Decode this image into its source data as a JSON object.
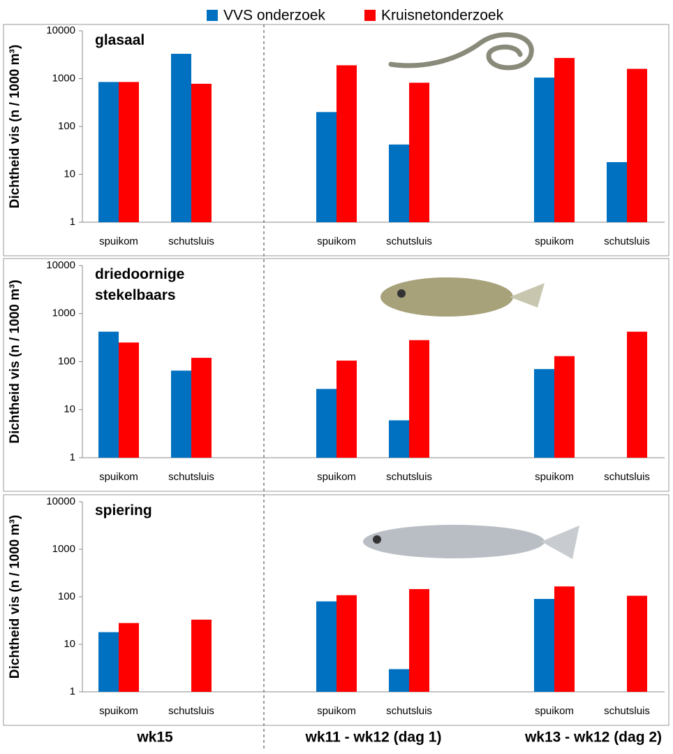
{
  "chart_data": [
    {
      "type": "bar",
      "title": "glasaal",
      "y_label": "Dichtheid vis (n / 1000 m³)",
      "log_scale": true,
      "categories": [
        "spuikom",
        "schutsluis",
        null,
        "spuikom",
        "schutsluis",
        null,
        "spuikom",
        "schutsluis"
      ],
      "series": [
        {
          "name": "VVS onderzoek",
          "color": "#0070c0",
          "values": [
            850,
            3300,
            null,
            200,
            42,
            null,
            1050,
            18
          ]
        },
        {
          "name": "Kruisnetonderzoek",
          "color": "#ff0000",
          "values": [
            850,
            780,
            null,
            1900,
            820,
            null,
            2700,
            1600
          ]
        }
      ],
      "ylim": [
        1,
        10000
      ],
      "yticks": [
        1,
        10,
        100,
        1000,
        10000
      ]
    },
    {
      "type": "bar",
      "title": "driedoornige stekelbaars",
      "y_label": "Dichtheid vis (n / 1000 m³)",
      "log_scale": true,
      "categories": [
        "spuikom",
        "schutsluis",
        null,
        "spuikom",
        "schutsluis",
        null,
        "spuikom",
        "schutsluis"
      ],
      "series": [
        {
          "name": "VVS onderzoek",
          "color": "#0070c0",
          "values": [
            420,
            65,
            null,
            27,
            6,
            null,
            70,
            null
          ]
        },
        {
          "name": "Kruisnetonderzoek",
          "color": "#ff0000",
          "values": [
            250,
            120,
            null,
            105,
            280,
            null,
            130,
            420
          ]
        }
      ],
      "ylim": [
        1,
        10000
      ],
      "yticks": [
        1,
        10,
        100,
        1000,
        10000
      ]
    },
    {
      "type": "bar",
      "title": "spiering",
      "y_label": "Dichtheid vis (n / 1000 m³)",
      "log_scale": true,
      "categories": [
        "spuikom",
        "schutsluis",
        null,
        "spuikom",
        "schutsluis",
        null,
        "spuikom",
        "schutsluis"
      ],
      "series": [
        {
          "name": "VVS onderzoek",
          "color": "#0070c0",
          "values": [
            18,
            null,
            null,
            80,
            3,
            null,
            90,
            null
          ]
        },
        {
          "name": "Kruisnetonderzoek",
          "color": "#ff0000",
          "values": [
            28,
            33,
            null,
            108,
            145,
            null,
            165,
            105
          ]
        }
      ],
      "ylim": [
        1,
        10000
      ],
      "yticks": [
        1,
        10,
        100,
        1000,
        10000
      ]
    }
  ],
  "groups": [
    "wk15",
    "wk11 - wk12 (dag 1)",
    "wk13 - wk12 (dag 2)"
  ]
}
